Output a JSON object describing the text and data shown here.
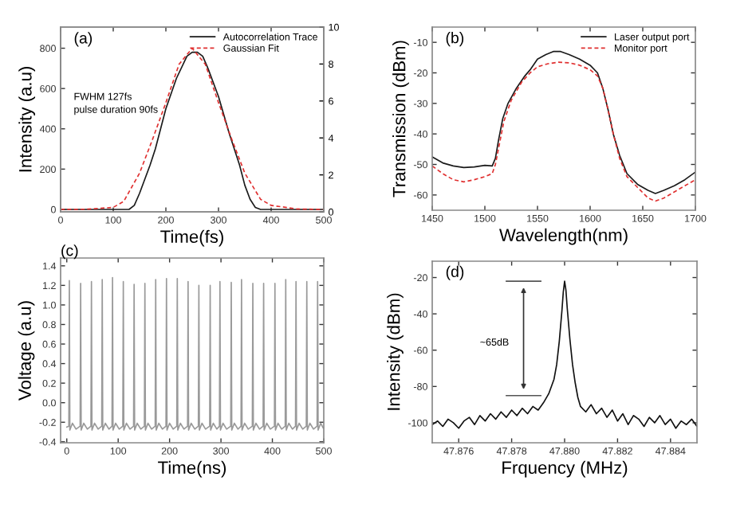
{
  "chart_data": [
    {
      "type": "line",
      "title": "(a)",
      "xlabel": "Time(fs)",
      "ylabel": "Intensity (a.u)",
      "xlim": [
        0,
        500
      ],
      "xticks": [
        0,
        100,
        200,
        300,
        400,
        500
      ],
      "ylim": [
        -12,
        905
      ],
      "yticks": [
        0,
        200,
        400,
        600,
        800
      ],
      "y2lim": [
        0,
        10
      ],
      "y2ticks": [
        0,
        2,
        4,
        6,
        8,
        10
      ],
      "legend": "top right",
      "annotations": [
        "FWHM 127fs",
        "pulse duration 90fs"
      ],
      "series": [
        {
          "name": "Autocorrelation Trace",
          "color": "#1a1a1a",
          "line_style": "solid",
          "x": [
            0,
            50,
            100,
            130,
            140,
            150,
            160,
            170,
            180,
            200,
            220,
            240,
            250,
            260,
            270,
            280,
            300,
            320,
            340,
            350,
            360,
            370,
            380,
            400,
            450,
            500
          ],
          "values": [
            0,
            0,
            0,
            0,
            20,
            80,
            150,
            220,
            300,
            500,
            650,
            760,
            780,
            780,
            760,
            700,
            560,
            380,
            220,
            120,
            50,
            10,
            0,
            0,
            0,
            0
          ]
        },
        {
          "name": "Gaussian Fit",
          "color": "#e03030",
          "line_style": "dashed",
          "x": [
            0,
            50,
            100,
            120,
            150,
            175,
            200,
            225,
            250,
            275,
            300,
            325,
            350,
            380,
            400,
            450,
            500
          ],
          "values": [
            0,
            1,
            10,
            40,
            180,
            350,
            530,
            720,
            800,
            720,
            530,
            350,
            180,
            50,
            20,
            2,
            0
          ]
        }
      ]
    },
    {
      "type": "line",
      "title": "(b)",
      "xlabel": "Wavelength(nm)",
      "ylabel": "Transmission (dBm)",
      "xlim": [
        1450,
        1700
      ],
      "xticks": [
        1450,
        1500,
        1550,
        1600,
        1650,
        1700
      ],
      "ylim": [
        -65,
        -5
      ],
      "yticks": [
        -60,
        -50,
        -40,
        -30,
        -20,
        -10
      ],
      "legend": "top right",
      "series": [
        {
          "name": "Laser output port",
          "color": "#1a1a1a",
          "line_style": "solid",
          "x": [
            1450,
            1460,
            1470,
            1480,
            1490,
            1500,
            1507,
            1510,
            1513,
            1517,
            1522,
            1530,
            1538,
            1543,
            1550,
            1558,
            1565,
            1572,
            1580,
            1590,
            1600,
            1607,
            1612,
            1617,
            1622,
            1628,
            1635,
            1645,
            1655,
            1662,
            1670,
            1680,
            1690,
            1700
          ],
          "values": [
            -47.5,
            -49.5,
            -50.5,
            -51,
            -50.8,
            -50.3,
            -50.5,
            -48,
            -42,
            -35,
            -30,
            -25,
            -21,
            -19,
            -15.5,
            -14,
            -13,
            -13,
            -14,
            -15.5,
            -17.5,
            -20,
            -25,
            -32,
            -40,
            -47,
            -53,
            -56.5,
            -58.5,
            -59.5,
            -58.5,
            -57,
            -55,
            -52.5
          ]
        },
        {
          "name": "Monitor port",
          "color": "#e03030",
          "line_style": "dashed",
          "x": [
            1450,
            1460,
            1470,
            1480,
            1490,
            1500,
            1507,
            1510,
            1514,
            1518,
            1525,
            1535,
            1543,
            1550,
            1560,
            1570,
            1580,
            1590,
            1600,
            1607,
            1612,
            1617,
            1622,
            1628,
            1635,
            1645,
            1655,
            1662,
            1670,
            1680,
            1690,
            1700
          ],
          "values": [
            -50.5,
            -53,
            -55,
            -55.7,
            -55,
            -54,
            -53,
            -50,
            -43,
            -36,
            -29,
            -23,
            -20,
            -18,
            -17,
            -16.5,
            -16.7,
            -17.5,
            -19,
            -21,
            -25,
            -32,
            -40,
            -48,
            -54,
            -57.5,
            -61,
            -62,
            -61,
            -59,
            -57,
            -55
          ]
        }
      ]
    },
    {
      "type": "line",
      "title": "(c)",
      "xlabel": "Time(ns)",
      "ylabel": "Voltage (a.u)",
      "xlim": [
        -12,
        500
      ],
      "xticks": [
        0,
        100,
        200,
        300,
        400,
        500
      ],
      "ylim": [
        -0.41,
        1.48
      ],
      "yticks": [
        -0.4,
        -0.2,
        {
          "value": 0,
          "label": "0.0"
        },
        0.2,
        0.4,
        0.6,
        0.8,
        {
          "value": 1,
          "label": "1.0"
        },
        1.2,
        1.4
      ],
      "series": [
        {
          "color": "#9a9a9a",
          "line_style": "solid",
          "x": [
            0,
            4,
            5,
            6,
            11,
            18,
            26,
            27,
            28,
            33,
            40,
            47,
            48,
            49,
            54,
            61,
            68,
            69,
            70,
            75,
            82,
            88,
            89,
            90,
            95,
            102,
            109,
            110,
            111,
            116,
            123,
            130,
            131,
            132,
            137,
            144,
            151,
            152,
            153,
            158,
            165,
            172,
            173,
            174,
            179,
            186,
            193,
            194,
            195,
            200,
            207,
            214,
            215,
            216,
            221,
            228,
            235,
            236,
            237,
            242,
            249,
            256,
            257,
            258,
            263,
            270,
            278,
            279,
            280,
            285,
            292,
            297,
            298,
            299,
            304,
            311,
            319,
            320,
            321,
            326,
            333,
            339,
            340,
            341,
            346,
            353,
            361,
            362,
            363,
            368,
            375,
            382,
            383,
            384,
            389,
            396,
            404,
            405,
            406,
            411,
            418,
            425,
            426,
            427,
            432,
            439,
            445,
            446,
            447,
            452,
            459,
            466,
            467,
            468,
            473,
            480,
            487,
            488,
            489,
            494,
            499
          ],
          "values": [
            -0.25,
            -0.24,
            1.25,
            -0.28,
            -0.21,
            -0.27,
            -0.24,
            1.22,
            -0.28,
            -0.21,
            -0.27,
            -0.24,
            1.24,
            -0.28,
            -0.21,
            -0.27,
            -0.24,
            1.26,
            -0.28,
            -0.21,
            -0.27,
            -0.24,
            1.28,
            -0.28,
            -0.21,
            -0.27,
            -0.24,
            1.24,
            -0.28,
            -0.21,
            -0.27,
            -0.24,
            1.21,
            -0.28,
            -0.21,
            -0.27,
            -0.24,
            1.22,
            -0.28,
            -0.21,
            -0.27,
            -0.24,
            1.26,
            -0.28,
            -0.21,
            -0.27,
            -0.24,
            1.27,
            -0.28,
            -0.21,
            -0.27,
            -0.24,
            1.27,
            -0.28,
            -0.21,
            -0.27,
            -0.24,
            1.24,
            -0.28,
            -0.21,
            -0.27,
            -0.24,
            1.2,
            -0.28,
            -0.21,
            -0.27,
            -0.24,
            1.2,
            -0.28,
            -0.21,
            -0.27,
            -0.24,
            1.24,
            -0.28,
            -0.21,
            -0.27,
            -0.24,
            1.23,
            -0.28,
            -0.21,
            -0.27,
            -0.24,
            1.26,
            -0.28,
            -0.21,
            -0.27,
            -0.24,
            1.22,
            -0.28,
            -0.21,
            -0.27,
            -0.24,
            1.22,
            -0.28,
            -0.21,
            -0.27,
            -0.24,
            1.22,
            -0.28,
            -0.21,
            -0.27,
            -0.24,
            1.26,
            -0.28,
            -0.21,
            -0.27,
            -0.24,
            1.24,
            -0.28,
            -0.21,
            -0.27,
            -0.24,
            1.24,
            -0.28,
            -0.21,
            -0.27,
            -0.24,
            1.24,
            -0.28,
            -0.21,
            -0.26
          ]
        }
      ]
    },
    {
      "type": "line",
      "title": "(d)",
      "xlabel": "Frquency (MHz)",
      "ylabel": "Intensity (dBm)",
      "xlim": [
        47.875,
        47.885
      ],
      "xticks": [
        {
          "value": 47.876,
          "label": "47.876"
        },
        {
          "value": 47.878,
          "label": "47.878"
        },
        {
          "value": 47.88,
          "label": "47.880"
        },
        {
          "value": 47.882,
          "label": "47.882"
        },
        {
          "value": 47.884,
          "label": "47.884"
        }
      ],
      "ylim": [
        -111,
        -11
      ],
      "yticks": [
        -100,
        -80,
        -60,
        -40,
        -20
      ],
      "annotations": [
        "~65dB"
      ],
      "series": [
        {
          "color": "#111111",
          "line_style": "solid",
          "x": [
            47.875,
            47.8752,
            47.8754,
            47.8756,
            47.8758,
            47.876,
            47.8762,
            47.8764,
            47.8766,
            47.8768,
            47.877,
            47.8772,
            47.8774,
            47.8776,
            47.8778,
            47.878,
            47.8782,
            47.8784,
            47.8786,
            47.8788,
            47.879,
            47.8792,
            47.8794,
            47.8796,
            47.8797,
            47.8798,
            47.8799,
            47.87995,
            47.88,
            47.88005,
            47.8801,
            47.8802,
            47.8803,
            47.8804,
            47.8805,
            47.8806,
            47.8808,
            47.881,
            47.8812,
            47.8814,
            47.8816,
            47.8818,
            47.882,
            47.8822,
            47.8824,
            47.8826,
            47.8828,
            47.883,
            47.8832,
            47.8834,
            47.8836,
            47.8838,
            47.884,
            47.8842,
            47.8844,
            47.8846,
            47.8848,
            47.885
          ],
          "values": [
            -101,
            -99,
            -102,
            -98,
            -100,
            -103,
            -99,
            -97,
            -101,
            -96,
            -99,
            -95,
            -98,
            -94,
            -97,
            -93,
            -96,
            -92,
            -95,
            -91,
            -93,
            -89,
            -84,
            -76,
            -68,
            -55,
            -38,
            -28,
            -22,
            -27,
            -37,
            -54,
            -68,
            -78,
            -86,
            -91,
            -94,
            -90,
            -95,
            -92,
            -97,
            -93,
            -99,
            -95,
            -101,
            -96,
            -98,
            -102,
            -97,
            -100,
            -96,
            -101,
            -98,
            -103,
            -99,
            -101,
            -98,
            -102
          ]
        }
      ]
    }
  ]
}
